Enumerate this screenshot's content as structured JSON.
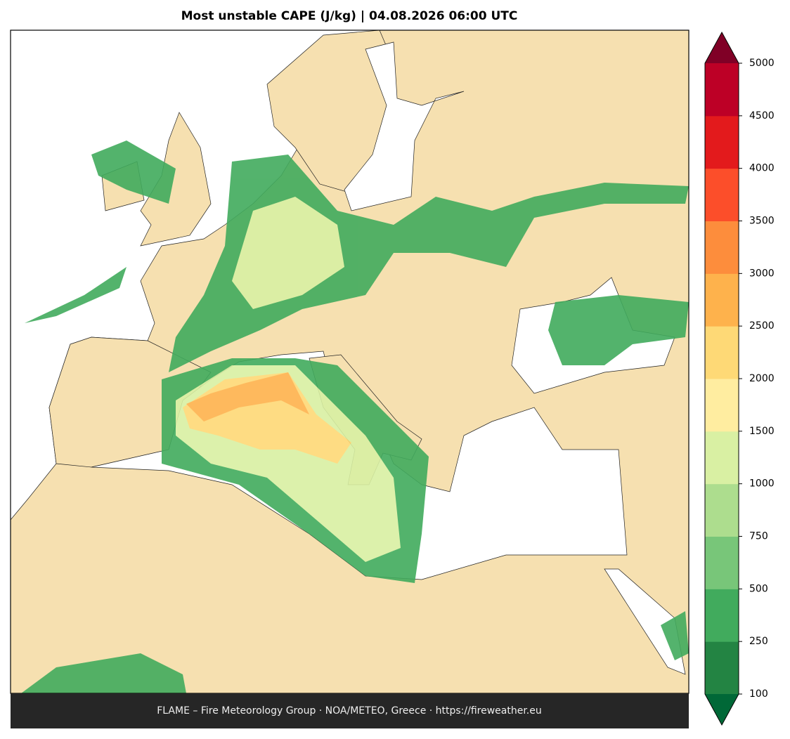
{
  "title": "Most unstable CAPE (J/kg)  |  04.08.2026 06:00 UTC",
  "colorbar": {
    "levels": [
      100,
      250,
      500,
      750,
      1000,
      1500,
      2000,
      2500,
      3000,
      3500,
      4000,
      4500,
      5000
    ],
    "colors": [
      "#238443",
      "#41ab5d",
      "#78c679",
      "#addd8e",
      "#d9f0a3",
      "#ffeda0",
      "#fed976",
      "#feb24c",
      "#fd8d3c",
      "#fc4e2a",
      "#e31a1c",
      "#bd0026"
    ],
    "under_color": "#006837",
    "over_color": "#800026"
  },
  "footer": "FLAME – Fire Meteorology Group · NOA/METEO, Greece · https://fireweather.eu"
}
